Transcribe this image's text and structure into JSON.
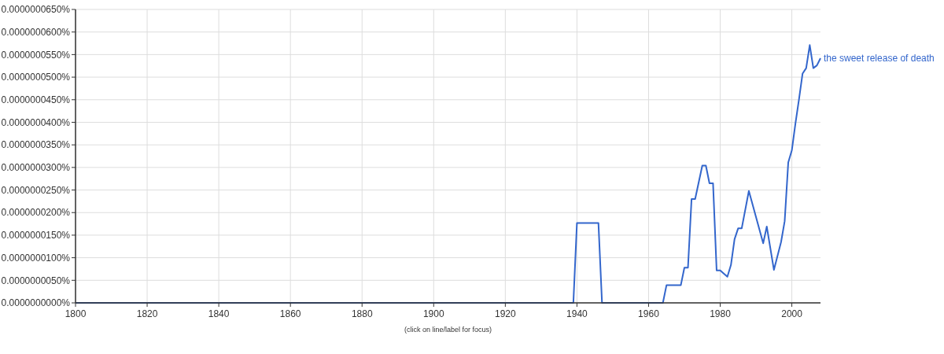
{
  "chart_data": {
    "type": "line",
    "annotations": [
      "(click on line/label for focus)"
    ],
    "x": [
      1800,
      1939,
      1940,
      1946,
      1947,
      1964,
      1965,
      1969,
      1970,
      1971,
      1972,
      1973,
      1975,
      1976,
      1977,
      1978,
      1979,
      1980,
      1982,
      1983,
      1984,
      1985,
      1986,
      1988,
      1992,
      1993,
      1995,
      1997,
      1998,
      1999,
      2000,
      2001,
      2002,
      2003,
      2004,
      2005,
      2006,
      2007,
      2008
    ],
    "series": [
      {
        "name": "the sweet release of death",
        "color": "#3366cc",
        "values": [
          0,
          0,
          1.77e-08,
          1.77e-08,
          0,
          0,
          3.9e-09,
          3.9e-09,
          7.8e-09,
          7.8e-09,
          2.3e-08,
          2.3e-08,
          3.04e-08,
          3.04e-08,
          2.65e-08,
          2.65e-08,
          7.2e-09,
          7.2e-09,
          5.8e-09,
          8.4e-09,
          1.41e-08,
          1.65e-08,
          1.65e-08,
          2.48e-08,
          1.32e-08,
          1.69e-08,
          7.3e-09,
          1.35e-08,
          1.81e-08,
          3.11e-08,
          3.38e-08,
          3.97e-08,
          4.51e-08,
          5.08e-08,
          5.2e-08,
          5.71e-08,
          5.2e-08,
          5.26e-08,
          5.42e-08
        ]
      }
    ],
    "xlim": [
      1800,
      2008
    ],
    "xticks": [
      1800,
      1820,
      1840,
      1860,
      1880,
      1900,
      1920,
      1940,
      1960,
      1980,
      2000
    ],
    "ylim": [
      0,
      6.5e-08
    ],
    "yticks": [
      {
        "value": 0,
        "label": "0.0000000000%"
      },
      {
        "value": 5e-09,
        "label": "0.0000000050%"
      },
      {
        "value": 1e-08,
        "label": "0.0000000100%"
      },
      {
        "value": 1.5e-08,
        "label": "0.0000000150%"
      },
      {
        "value": 2e-08,
        "label": "0.0000000200%"
      },
      {
        "value": 2.5e-08,
        "label": "0.0000000250%"
      },
      {
        "value": 3e-08,
        "label": "0.0000000300%"
      },
      {
        "value": 3.5e-08,
        "label": "0.0000000350%"
      },
      {
        "value": 4e-08,
        "label": "0.0000000400%"
      },
      {
        "value": 4.5e-08,
        "label": "0.0000000450%"
      },
      {
        "value": 5e-08,
        "label": "0.0000000500%"
      },
      {
        "value": 5.5e-08,
        "label": "0.0000000550%"
      },
      {
        "value": 6e-08,
        "label": "0.0000000600%"
      },
      {
        "value": 6.5e-08,
        "label": "0.0000000650%"
      }
    ],
    "grid": true
  }
}
